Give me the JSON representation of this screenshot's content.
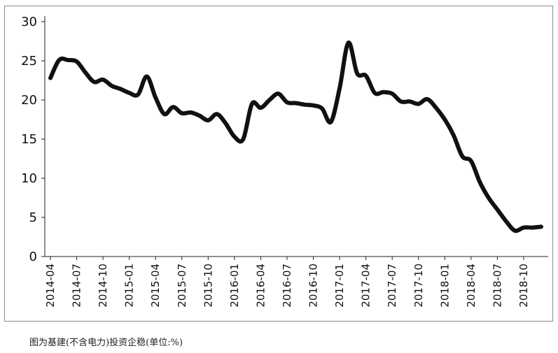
{
  "caption": "图为基建(不含电力)投资企稳(单位:%)",
  "chart_data": {
    "type": "line",
    "title": "",
    "xlabel": "",
    "ylabel": "",
    "ylim": [
      0,
      30
    ],
    "yticks": [
      0,
      5,
      10,
      15,
      20,
      25,
      30
    ],
    "grid": false,
    "legend": "none",
    "line_color": "#111111",
    "x_tick_labels": [
      "2014-04",
      "2014-07",
      "2014-10",
      "2015-01",
      "2015-04",
      "2015-07",
      "2015-10",
      "2016-01",
      "2016-04",
      "2016-07",
      "2016-10",
      "2017-01",
      "2017-04",
      "2017-07",
      "2017-10",
      "2018-01",
      "2018-04",
      "2018-07",
      "2018-10"
    ],
    "series": [
      {
        "x": [
          "2014-04",
          "2014-05",
          "2014-06",
          "2014-07",
          "2014-08",
          "2014-09",
          "2014-10",
          "2014-11",
          "2014-12",
          "2015-01",
          "2015-02",
          "2015-03",
          "2015-04",
          "2015-05",
          "2015-06",
          "2015-07",
          "2015-08",
          "2015-09",
          "2015-10",
          "2015-11",
          "2015-12",
          "2016-01",
          "2016-02",
          "2016-03",
          "2016-04",
          "2016-05",
          "2016-06",
          "2016-07",
          "2016-08",
          "2016-09",
          "2016-10",
          "2016-11",
          "2016-12",
          "2017-01",
          "2017-02",
          "2017-03",
          "2017-04",
          "2017-05",
          "2017-06",
          "2017-07",
          "2017-08",
          "2017-09",
          "2017-10",
          "2017-11",
          "2017-12",
          "2018-01",
          "2018-02",
          "2018-03",
          "2018-04",
          "2018-05",
          "2018-06",
          "2018-07",
          "2018-08",
          "2018-09",
          "2018-10",
          "2018-11",
          "2018-12"
        ],
        "values": [
          22.8,
          25.1,
          25.1,
          24.9,
          23.5,
          22.3,
          22.6,
          21.8,
          21.4,
          20.9,
          20.7,
          23.0,
          20.3,
          18.2,
          19.1,
          18.3,
          18.4,
          18.0,
          17.4,
          18.2,
          17.0,
          15.3,
          15.0,
          19.5,
          19.0,
          20.0,
          20.8,
          19.7,
          19.6,
          19.4,
          19.3,
          18.9,
          17.2,
          21.5,
          27.3,
          23.4,
          23.1,
          20.9,
          21.0,
          20.8,
          19.8,
          19.8,
          19.5,
          20.1,
          19.0,
          17.5,
          15.5,
          12.8,
          12.2,
          9.5,
          7.5,
          6.0,
          4.5,
          3.3,
          3.7,
          3.7,
          3.8
        ]
      }
    ]
  }
}
